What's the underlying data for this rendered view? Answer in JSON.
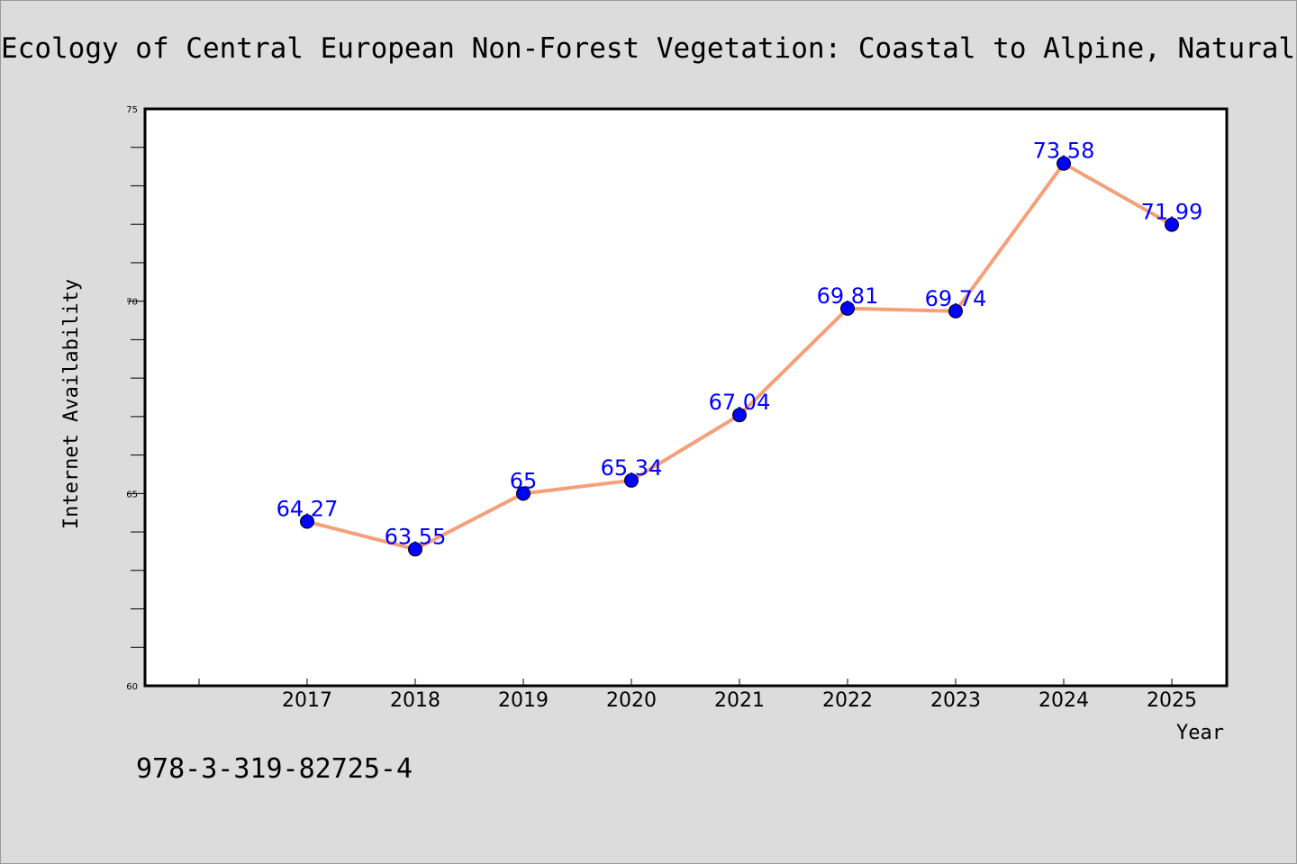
{
  "page": {
    "isbn": "978-3-319-82725-4"
  },
  "colors": {
    "line": "#f4a07a",
    "marker": "#0000ff",
    "label": "#0000ff",
    "background": "#dcdcdc"
  },
  "chart_data": {
    "type": "line",
    "title": "Ecology of Central European Non-Forest Vegetation: Coastal to Alpine, Natural to",
    "xlabel": "Year",
    "ylabel": "Internet Availability",
    "x": [
      "2017",
      "2018",
      "2019",
      "2020",
      "2021",
      "2022",
      "2023",
      "2024",
      "2025"
    ],
    "series": [
      {
        "values": [
          64.27,
          63.55,
          65,
          65.34,
          67.04,
          69.81,
          69.74,
          73.58,
          71.99
        ],
        "labels": [
          "64.27",
          "63.55",
          "65",
          "65.34",
          "67.04",
          "69.81",
          "69.74",
          "73.58",
          "71.99"
        ]
      }
    ],
    "ylim": [
      60,
      75
    ],
    "yticks": [
      "60",
      "65",
      "70",
      "75"
    ],
    "grid": false,
    "legend": "none"
  }
}
